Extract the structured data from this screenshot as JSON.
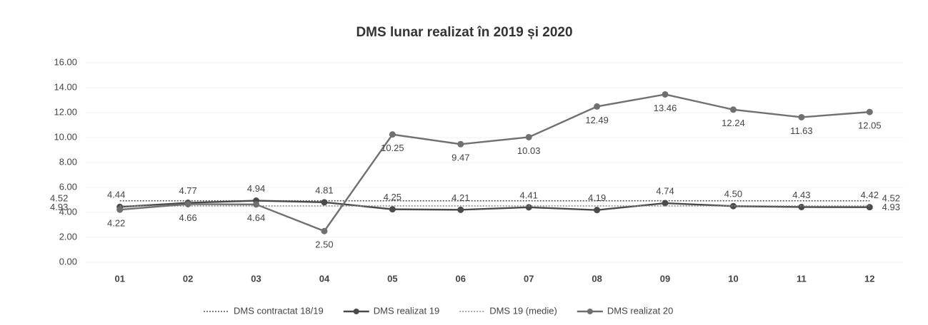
{
  "chart_data": {
    "type": "line",
    "title": "DMS lunar realizat în 2019 și 2020",
    "categories": [
      "01",
      "02",
      "03",
      "04",
      "05",
      "06",
      "07",
      "08",
      "09",
      "10",
      "11",
      "12"
    ],
    "ylim": [
      0,
      16
    ],
    "yticks": [
      {
        "value": 0,
        "label": "0.00"
      },
      {
        "value": 2,
        "label": "2.00"
      },
      {
        "value": 4,
        "label": "4.00"
      },
      {
        "value": 6,
        "label": "6.00"
      },
      {
        "value": 8,
        "label": "8.00"
      },
      {
        "value": 10,
        "label": "10.00"
      },
      {
        "value": 12,
        "label": "12.00"
      },
      {
        "value": 14,
        "label": "14.00"
      },
      {
        "value": 16,
        "label": "16.00"
      }
    ],
    "grid": true,
    "legend": "bottom",
    "series": [
      {
        "name": "DMS contractat 18/19",
        "color": "#555555",
        "style": "dotted",
        "values": [
          4.93,
          4.93,
          4.93,
          4.93,
          4.93,
          4.93,
          4.93,
          4.93,
          4.93,
          4.93,
          4.93,
          4.93
        ]
      },
      {
        "name": "DMS realizat 19",
        "color": "#4a4a4a",
        "style": "solid",
        "values": [
          4.44,
          4.77,
          4.94,
          4.81,
          4.25,
          4.21,
          4.41,
          4.19,
          4.74,
          4.5,
          4.43,
          4.42
        ],
        "value_labels": [
          "4.44",
          "4.77",
          "4.94",
          "4.81",
          "4.25",
          "4.21",
          "4.41",
          "4.19",
          "4.74",
          "4.50",
          "4.43",
          "4.42"
        ]
      },
      {
        "name": "DMS 19 (medie)",
        "color": "#8a8a8a",
        "style": "dotted",
        "values": [
          4.52,
          4.52,
          4.52,
          4.52,
          4.52,
          4.52,
          4.52,
          4.52,
          4.52,
          4.52,
          4.52,
          4.52
        ]
      },
      {
        "name": "DMS realizat 20",
        "color": "#707070",
        "style": "solid",
        "values": [
          4.22,
          4.66,
          4.64,
          2.5,
          10.25,
          9.47,
          10.03,
          12.49,
          13.46,
          12.24,
          11.63,
          12.05
        ],
        "value_labels": [
          "4.22",
          "4.66",
          "4.64",
          "2.50",
          "10.25",
          "9.47",
          "10.03",
          "12.49",
          "13.46",
          "12.24",
          "11.63",
          "12.05"
        ]
      }
    ]
  }
}
